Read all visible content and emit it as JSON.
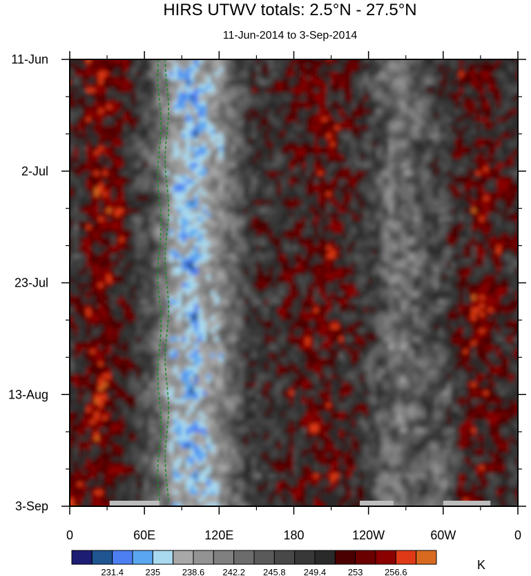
{
  "chart_data": {
    "type": "heatmap",
    "title": "HIRS UTWV totals: 2.5°N - 27.5°N",
    "subtitle": "11-Jun-2014 to 3-Sep-2014",
    "x_ticks": [
      "0",
      "60E",
      "120E",
      "180",
      "120W",
      "60W",
      "0"
    ],
    "x_tick_values": [
      0,
      60,
      120,
      180,
      240,
      300,
      360
    ],
    "xlim": [
      0,
      360
    ],
    "y_ticks": [
      "11-Jun",
      "2-Jul",
      "23-Jul",
      "13-Aug",
      "3-Sep"
    ],
    "y_tick_values": [
      0,
      21,
      42,
      63,
      84
    ],
    "ylim": [
      0,
      84
    ],
    "colorbar": {
      "unit": "K",
      "colors": [
        "#1d1d73",
        "#1f5591",
        "#4d7ff2",
        "#5aa7f0",
        "#a8d9ee",
        "#a8a8a8",
        "#939393",
        "#808080",
        "#6c6c6c",
        "#5a5a5a",
        "#484848",
        "#383838",
        "#2a2a2a",
        "#4a0000",
        "#6b0000",
        "#8b0000",
        "#df3a18",
        "#d86a20"
      ],
      "labels": [
        "231.4",
        "235",
        "238.6",
        "242.2",
        "245.8",
        "249.4",
        "253",
        "256.6"
      ],
      "label_boundaries": [
        2,
        4,
        6,
        8,
        10,
        12,
        14,
        16
      ]
    },
    "dashed_contour_lon": [
      72,
      78
    ]
  }
}
